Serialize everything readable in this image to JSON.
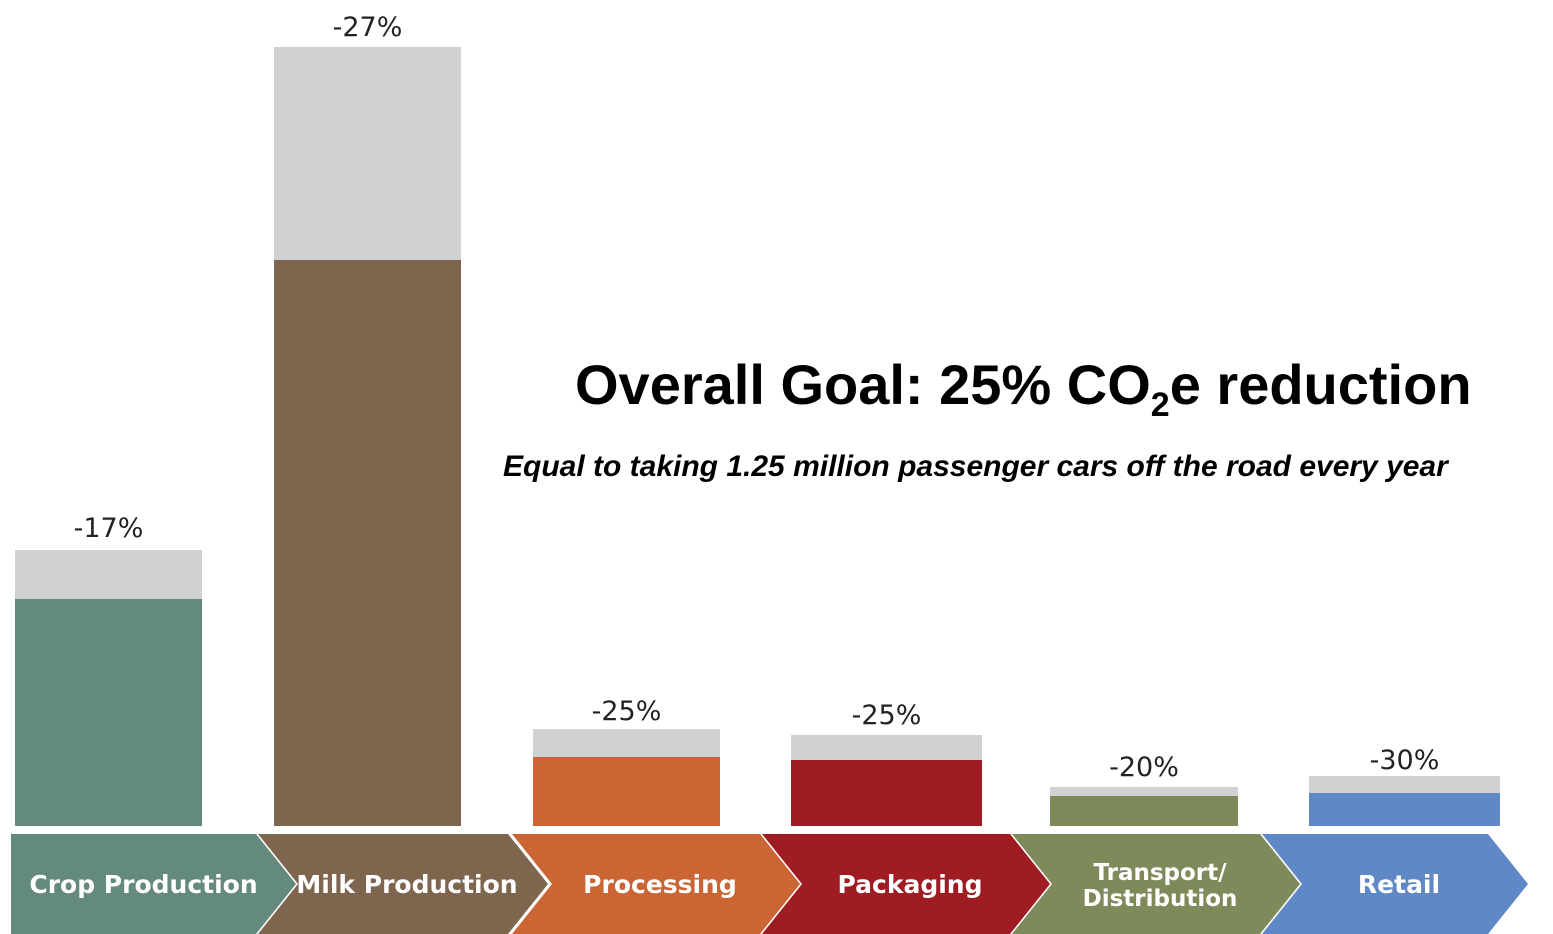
{
  "headline": {
    "title_before": "Overall Goal: 25% CO",
    "title_subscript": "2",
    "title_after": "e reduction",
    "subtitle": "Equal to taking 1.25 million passenger cars off the road every year"
  },
  "chart_data": {
    "type": "bar",
    "title": "",
    "categories": [
      "Crop Production",
      "Milk Production",
      "Processing",
      "Packaging",
      "Transport/ Distribution",
      "Retail"
    ],
    "stage_lines": [
      [
        "Crop Production"
      ],
      [
        "Milk Production"
      ],
      [
        "Processing"
      ],
      [
        "Packaging"
      ],
      [
        "Transport/",
        "Distribution"
      ],
      [
        "Retail"
      ]
    ],
    "series": [
      {
        "name": "",
        "values": [
          -17,
          -27,
          -25,
          -25,
          -20,
          -30
        ]
      }
    ],
    "value_labels": [
      "-17%",
      "-27%",
      "-25%",
      "-25%",
      "-20%",
      "-30%"
    ],
    "stage_colors": [
      "#648a7e",
      "#7e654e",
      "#cb6534",
      "#9e1c22",
      "#7f8a5a",
      "#5f89c6"
    ],
    "reduction_color": "#d0d1d3",
    "xlabel": "",
    "ylabel": "",
    "grid": false,
    "legend": "none"
  }
}
